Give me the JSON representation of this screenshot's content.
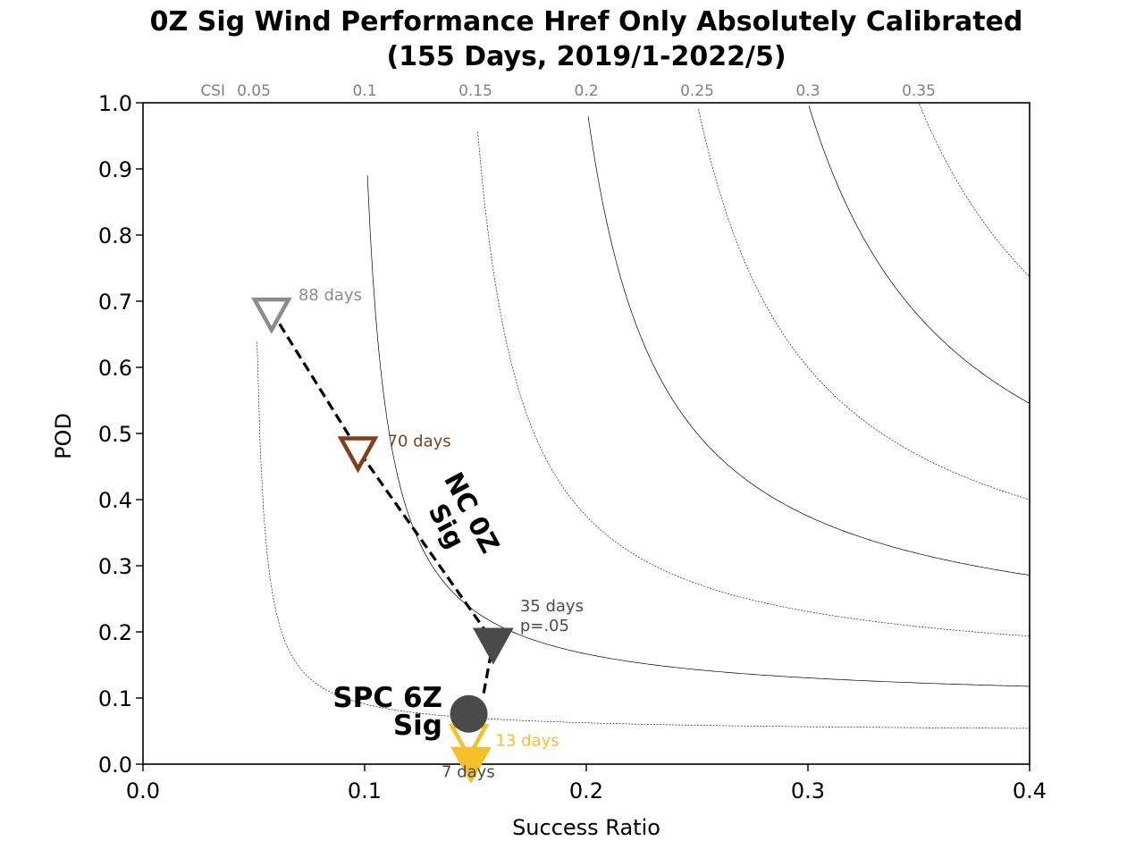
{
  "chart_data": {
    "type": "scatter",
    "title": [
      "0Z Sig Wind Performance Href Only Absolutely Calibrated",
      "(155 Days, 2019/1-2022/5)"
    ],
    "xlabel": "Success Ratio",
    "ylabel": "POD",
    "xlim": [
      0.0,
      0.4
    ],
    "ylim": [
      0.0,
      1.0
    ],
    "x_ticks": [
      "0.0",
      "0.1",
      "0.2",
      "0.3",
      "0.4"
    ],
    "y_ticks": [
      "0.0",
      "0.1",
      "0.2",
      "0.3",
      "0.4",
      "0.5",
      "0.6",
      "0.7",
      "0.8",
      "0.9",
      "1.0"
    ],
    "x_tick_values": [
      0.0,
      0.1,
      0.2,
      0.3,
      0.4
    ],
    "y_tick_values": [
      0.0,
      0.1,
      0.2,
      0.3,
      0.4,
      0.5,
      0.6,
      0.7,
      0.8,
      0.9,
      1.0
    ],
    "csi_prefix": "CSI",
    "csi_labels": [
      "0.05",
      "0.1",
      "0.15",
      "0.2",
      "0.25",
      "0.3",
      "0.35"
    ],
    "csi_values": [
      0.05,
      0.1,
      0.15,
      0.2,
      0.25,
      0.3,
      0.35
    ],
    "series": [
      {
        "points": [
          {
            "x": 0.058,
            "y": 0.685,
            "marker": "triangle-down",
            "filled": false,
            "color": "#8c8c8c",
            "label": "88 days"
          },
          {
            "x": 0.097,
            "y": 0.475,
            "marker": "triangle-down",
            "filled": false,
            "color": "#7f3f1f",
            "label": "70 days"
          },
          {
            "x": 0.158,
            "y": 0.185,
            "marker": "triangle-down",
            "filled": true,
            "color": "#4a4a4a",
            "label": [
              "35 days",
              "p=.05"
            ]
          },
          {
            "x": 0.147,
            "y": 0.04,
            "marker": "triangle-down",
            "filled": false,
            "color": "#f5c02c",
            "label": "13 days"
          },
          {
            "x": 0.148,
            "y": 0.005,
            "marker": "triangle-down",
            "filled": true,
            "color": "#f5c02c",
            "label": "7 days"
          }
        ]
      }
    ],
    "curve_annotation": [
      "NC 0Z",
      "Sig"
    ],
    "reference_point": {
      "x": 0.147,
      "y": 0.076,
      "marker": "circle",
      "color": "#4a4a4a",
      "label": [
        "SPC 6Z",
        "Sig"
      ]
    }
  }
}
